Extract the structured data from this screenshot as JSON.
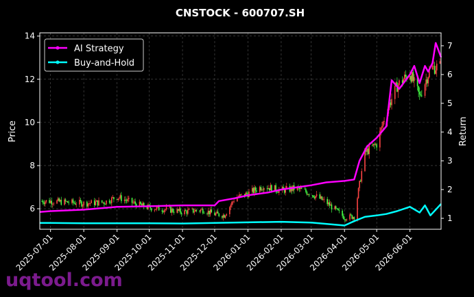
{
  "chart_data": {
    "type": "line",
    "title": "CNSTOCK - 600707.SH",
    "ylabel": "Price",
    "y2label": "Return",
    "ylim": [
      5.05,
      14.15
    ],
    "y2lim": [
      0.62,
      7.45
    ],
    "xlim": [
      "2025-06-21",
      "2026-06-30"
    ],
    "yticks": [
      6,
      8,
      10,
      12,
      14
    ],
    "y2ticks": [
      1,
      2,
      3,
      4,
      5,
      6,
      7
    ],
    "xticks": [
      "2025-07-01",
      "2025-08-01",
      "2025-09-01",
      "2025-10-01",
      "2025-11-01",
      "2025-12-01",
      "2026-01-01",
      "2026-02-01",
      "2026-03-01",
      "2026-04-01",
      "2026-05-01",
      "2026-06-01"
    ],
    "grid": true,
    "legend_position": "top-left",
    "candles": {
      "up_color": "#ff4444",
      "down_color": "#44ff44",
      "dates": [
        "2025-07-01",
        "2025-08-01",
        "2025-08-20",
        "2025-09-01",
        "2025-09-20",
        "2025-10-01",
        "2025-10-20",
        "2025-11-01",
        "2025-11-20",
        "2025-12-01",
        "2025-12-10",
        "2025-12-20",
        "2026-01-01",
        "2026-01-15",
        "2026-02-01",
        "2026-02-15",
        "2026-03-01",
        "2026-03-15",
        "2026-04-01",
        "2026-04-10",
        "2026-04-20",
        "2026-05-01",
        "2026-05-10",
        "2026-05-20",
        "2026-06-01",
        "2026-06-10",
        "2026-06-20",
        "2026-06-28"
      ],
      "close": [
        6.35,
        6.25,
        6.3,
        6.55,
        6.2,
        6.05,
        5.95,
        5.85,
        5.95,
        5.75,
        5.7,
        6.5,
        6.7,
        7.05,
        6.85,
        6.95,
        6.7,
        6.3,
        5.6,
        5.65,
        8.6,
        9.0,
        10.5,
        11.7,
        12.3,
        11.2,
        12.5,
        12.6
      ]
    },
    "series": [
      {
        "name": "AI Strategy",
        "color": "#ff00ff",
        "x": [
          "2025-06-21",
          "2025-07-01",
          "2025-08-01",
          "2025-09-01",
          "2025-10-01",
          "2025-11-01",
          "2025-12-01",
          "2025-12-05",
          "2025-12-20",
          "2026-01-01",
          "2026-01-20",
          "2026-02-01",
          "2026-02-20",
          "2026-03-01",
          "2026-03-15",
          "2026-04-01",
          "2026-04-10",
          "2026-04-15",
          "2026-04-22",
          "2026-05-01",
          "2026-05-10",
          "2026-05-15",
          "2026-05-22",
          "2026-06-01",
          "2026-06-05",
          "2026-06-10",
          "2026-06-15",
          "2026-06-18",
          "2026-06-22",
          "2026-06-25",
          "2026-06-30"
        ],
        "values": [
          1.22,
          1.25,
          1.3,
          1.4,
          1.42,
          1.45,
          1.45,
          1.6,
          1.7,
          1.8,
          1.9,
          2.0,
          2.1,
          2.15,
          2.25,
          2.3,
          2.35,
          3.0,
          3.5,
          3.8,
          4.2,
          5.8,
          5.5,
          6.0,
          6.3,
          5.7,
          6.3,
          6.1,
          6.4,
          7.1,
          6.6
        ]
      },
      {
        "name": "Buy-and-Hold",
        "color": "#00ffff",
        "x": [
          "2025-06-21",
          "2025-07-01",
          "2025-08-01",
          "2025-09-01",
          "2025-10-01",
          "2025-11-01",
          "2025-12-01",
          "2026-01-01",
          "2026-02-01",
          "2026-03-01",
          "2026-04-01",
          "2026-04-10",
          "2026-04-20",
          "2026-05-01",
          "2026-05-10",
          "2026-05-20",
          "2026-06-01",
          "2026-06-10",
          "2026-06-15",
          "2026-06-20",
          "2026-06-25",
          "2026-06-30"
        ],
        "values": [
          0.84,
          0.84,
          0.83,
          0.83,
          0.83,
          0.82,
          0.84,
          0.86,
          0.88,
          0.85,
          0.75,
          0.9,
          1.05,
          1.1,
          1.15,
          1.25,
          1.4,
          1.2,
          1.45,
          1.1,
          1.3,
          1.5
        ]
      }
    ]
  },
  "watermark": "uqtool.com"
}
